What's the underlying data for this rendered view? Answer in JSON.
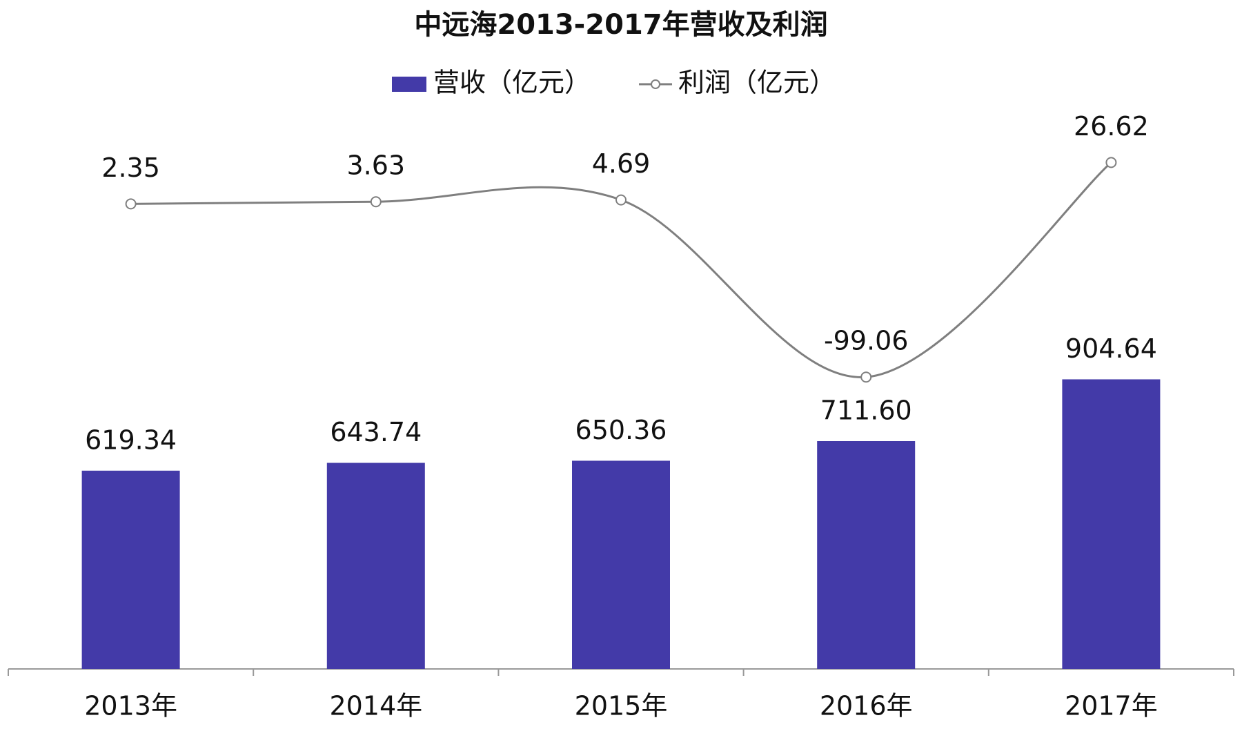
{
  "chart_data": {
    "type": "bar_line",
    "title": "中远海2013-2017年营收及利润",
    "categories": [
      "2013年",
      "2014年",
      "2015年",
      "2016年",
      "2017年"
    ],
    "series": [
      {
        "name": "营收（亿元）",
        "type": "bar",
        "color": "#433aa8",
        "values": [
          619.34,
          643.74,
          650.36,
          711.6,
          904.64
        ],
        "value_labels": [
          "619.34",
          "643.74",
          "650.36",
          "711.60",
          "904.64"
        ]
      },
      {
        "name": "利润（亿元）",
        "type": "line",
        "axis": "y2",
        "color": "#7f7f7f",
        "smooth": true,
        "values": [
          2.35,
          3.63,
          4.69,
          -99.06,
          26.62
        ]
      }
    ],
    "ylim": [
      0,
      1600
    ],
    "y2lim": [
      -270,
      30
    ],
    "legend": "top"
  }
}
